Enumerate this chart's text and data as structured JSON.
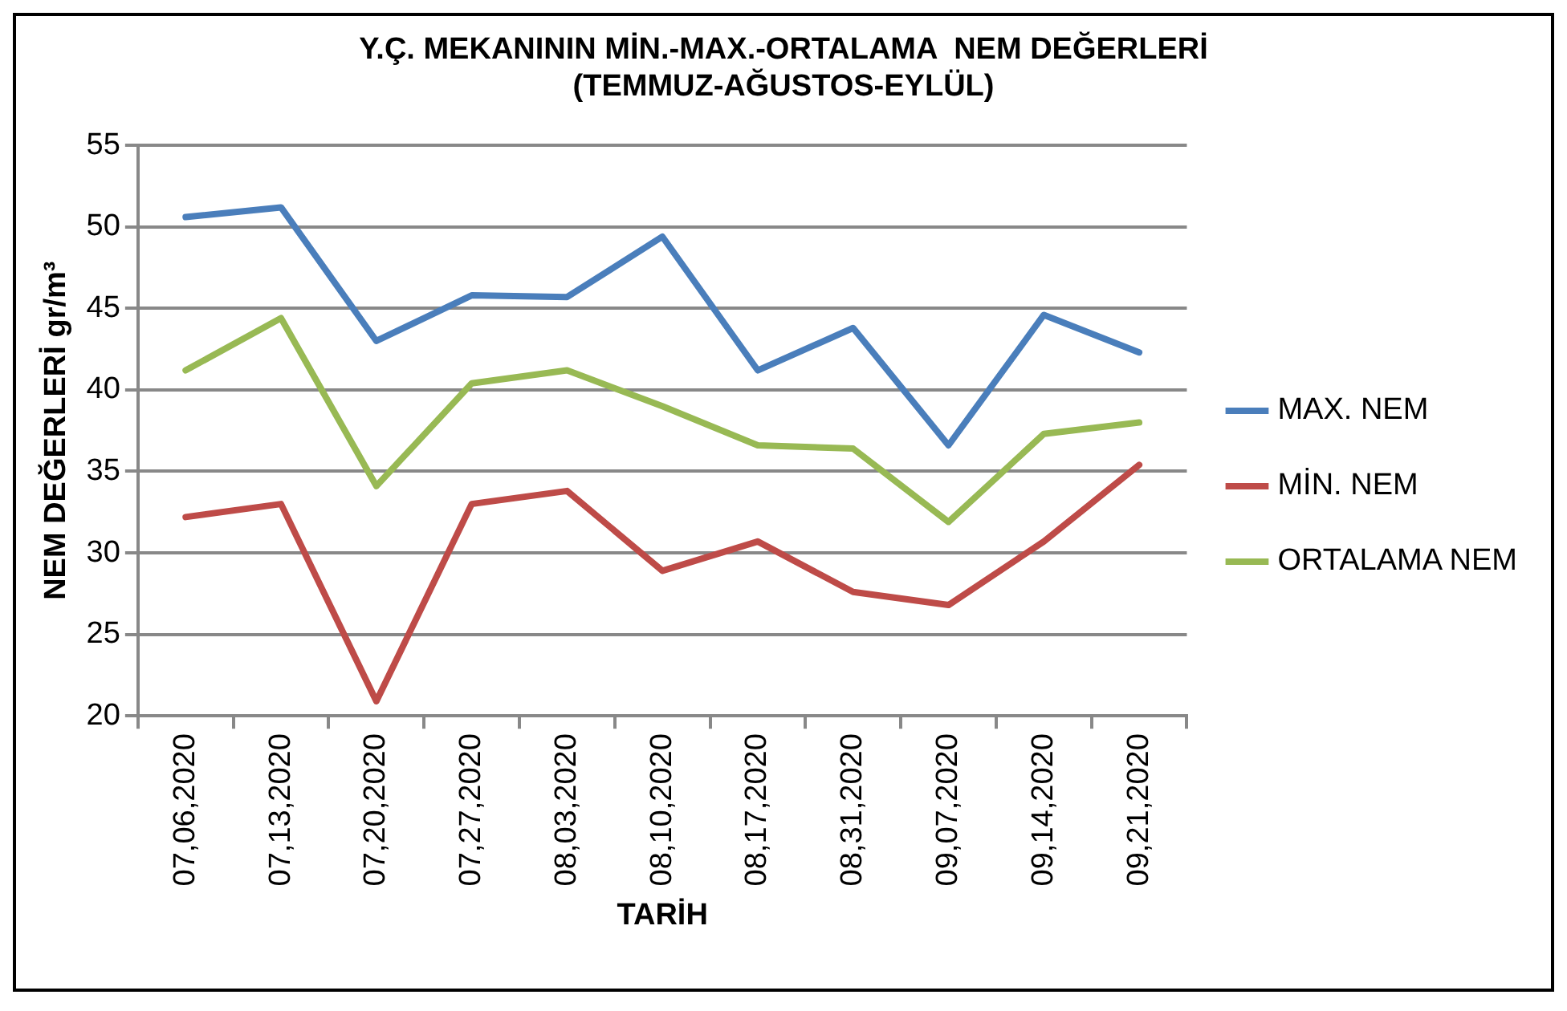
{
  "chart_data": {
    "type": "line",
    "title": "Y.Ç. MEKANININ MİN.-MAX.-ORTALAMA  NEM DEĞERLERİ\n(TEMMUZ-AĞUSTOS-EYLÜL)",
    "xlabel": "TARİH",
    "ylabel": "NEM DEĞERLERİ gr/m³",
    "categories": [
      "07,06,2020",
      "07,13,2020",
      "07,20,2020",
      "07,27,2020",
      "08,03,2020",
      "08,10,2020",
      "08,17,2020",
      "08,31,2020",
      "09,07,2020",
      "09,14,2020",
      "09,21,2020"
    ],
    "series": [
      {
        "name": "MAX. NEM",
        "color": "#4a7ebb",
        "values": [
          50.6,
          51.2,
          43.0,
          45.8,
          45.7,
          49.4,
          41.2,
          43.8,
          36.6,
          44.6,
          42.3
        ]
      },
      {
        "name": "MİN. NEM",
        "color": "#be4b48",
        "values": [
          32.2,
          33.0,
          20.9,
          33.0,
          33.8,
          28.9,
          30.7,
          27.6,
          26.8,
          30.7,
          35.4
        ]
      },
      {
        "name": "ORTALAMA NEM",
        "color": "#98b954",
        "values": [
          41.2,
          44.4,
          34.1,
          40.4,
          41.2,
          39.0,
          36.6,
          36.4,
          31.9,
          37.3,
          38.0
        ]
      }
    ],
    "ylim": [
      20,
      55
    ],
    "yticks": [
      20,
      25,
      30,
      35,
      40,
      45,
      50,
      55
    ],
    "grid": "y",
    "legend": "right",
    "marker": "none",
    "line_style": "solid"
  }
}
